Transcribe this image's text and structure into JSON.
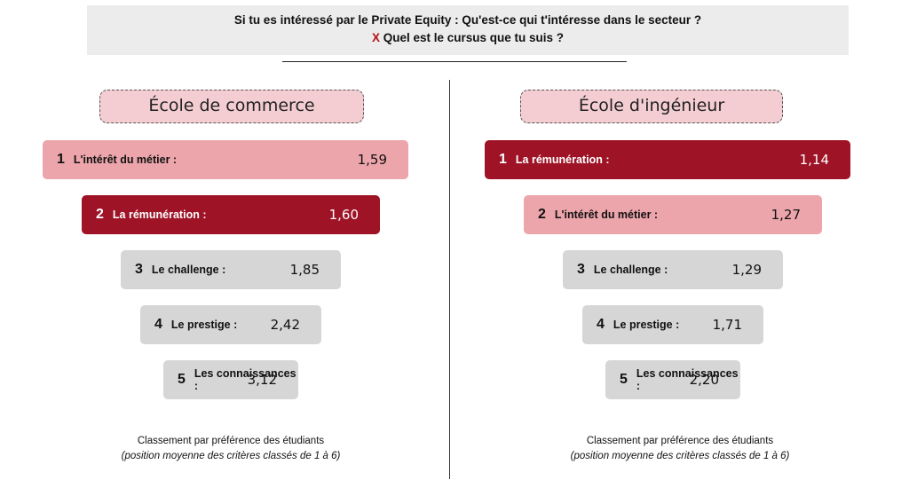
{
  "header": {
    "line1": "Si tu es intéressé par le Private Equity : Qu'est-ce qui t'intéresse dans le secteur ?",
    "cross": "X",
    "line2": "Quel est le cursus que tu suis ?"
  },
  "colors": {
    "rank1_left": "#eca5ab",
    "red": "#9e1326",
    "pink": "#eca5ab",
    "grey": "#d6d6d6",
    "school_box": "#f4cdd2"
  },
  "chart_data": [
    {
      "type": "bar",
      "title": "École de commerce",
      "orientation": "horizontal",
      "categories": [
        "L'intérêt du métier :",
        "La rémunération :",
        "Le challenge :",
        "Le prestige :",
        "Les connaissances :"
      ],
      "ranks": [
        "1",
        "2",
        "3",
        "4",
        "5"
      ],
      "values": [
        1.59,
        1.6,
        1.85,
        2.42,
        3.12
      ],
      "value_labels": [
        "1,59",
        "1,60",
        "1,85",
        "2,42",
        "3,12"
      ],
      "styles": [
        "pink",
        "red",
        "grey",
        "grey",
        "grey"
      ],
      "caption_line1": "Classement par préférence des étudiants",
      "caption_line2": "(position moyenne des critères classés de 1 à 6)"
    },
    {
      "type": "bar",
      "title": "École d'ingénieur",
      "orientation": "horizontal",
      "categories": [
        "La rémunération :",
        "L'intérêt du métier :",
        "Le challenge :",
        "Le prestige :",
        "Les connaissances :"
      ],
      "ranks": [
        "1",
        "2",
        "3",
        "4",
        "5"
      ],
      "values": [
        1.14,
        1.27,
        1.29,
        1.71,
        2.2
      ],
      "value_labels": [
        "1,14",
        "1,27",
        "1,29",
        "1,71",
        "2,20"
      ],
      "styles": [
        "red",
        "pink",
        "grey",
        "grey",
        "grey"
      ],
      "caption_line1": "Classement par préférence des étudiants",
      "caption_line2": "(position moyenne des critères classés de 1 à 6)"
    }
  ]
}
